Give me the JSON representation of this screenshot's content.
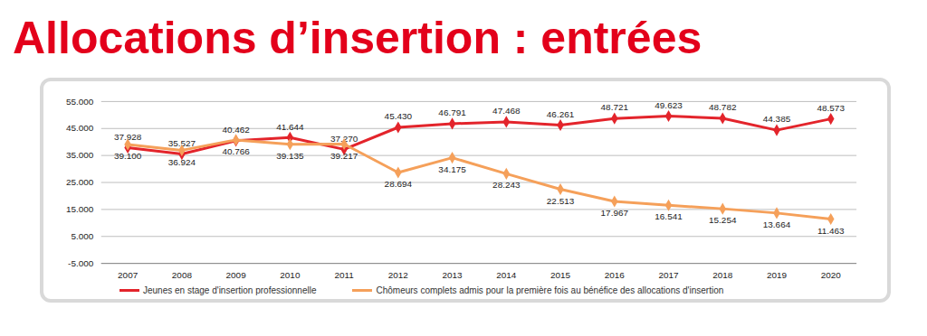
{
  "chart_data": {
    "type": "line",
    "title": "Allocations d’insertion : entrées",
    "categories": [
      "2007",
      "2008",
      "2009",
      "2010",
      "2011",
      "2012",
      "2013",
      "2014",
      "2015",
      "2016",
      "2017",
      "2018",
      "2019",
      "2020"
    ],
    "series": [
      {
        "name": "Jeunes en stage d'insertion professionnelle",
        "color": "#e3242b",
        "marker": "diamond",
        "values": [
          37928,
          35527,
          40462,
          41644,
          37270,
          45430,
          46791,
          47468,
          46261,
          48721,
          49623,
          48782,
          44385,
          48573
        ],
        "value_labels": [
          "37.928",
          "35.527",
          "40.462",
          "41.644",
          "37.270",
          "45.430",
          "46.791",
          "47.468",
          "46.261",
          "48.721",
          "49.623",
          "48.782",
          "44.385",
          "48.573"
        ]
      },
      {
        "name": "Chômeurs complets admis pour la première fois au bénéfice des allocations d'insertion",
        "color": "#f5a05a",
        "marker": "diamond",
        "values": [
          39100,
          36924,
          40766,
          39135,
          39217,
          28694,
          34175,
          28243,
          22513,
          17967,
          16541,
          15254,
          13664,
          11463
        ],
        "value_labels": [
          "39.100",
          "36.924",
          "40.766",
          "39.135",
          "39.217",
          "28.694",
          "34.175",
          "28.243",
          "22.513",
          "17.967",
          "16.541",
          "15.254",
          "13.664",
          "11.463"
        ]
      }
    ],
    "ylim": [
      -5000,
      55000
    ],
    "yticks": [
      {
        "value": -5000,
        "label": "-5.000"
      },
      {
        "value": 5000,
        "label": "5.000"
      },
      {
        "value": 15000,
        "label": "15.000"
      },
      {
        "value": 25000,
        "label": "25.000"
      },
      {
        "value": 35000,
        "label": "35.000"
      },
      {
        "value": 45000,
        "label": "45.000"
      },
      {
        "value": 55000,
        "label": "55.000"
      }
    ],
    "grid": true,
    "data_labels": true,
    "legend": "bottom"
  }
}
